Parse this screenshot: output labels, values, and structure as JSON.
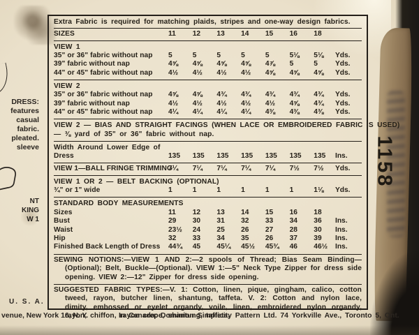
{
  "pattern_number": "1158",
  "table": {
    "note": "Extra Fabric is required for matching plaids, stripes and one-way design fabrics.",
    "sizes_header": {
      "label": "SIZES",
      "values": [
        "11",
        "12",
        "13",
        "14",
        "15",
        "16",
        "18"
      ],
      "unit": ""
    },
    "view1": {
      "title": "VIEW 1",
      "rows": [
        {
          "label": "35\" or 36\" fabric without nap",
          "values": [
            "5",
            "5",
            "5",
            "5",
            "5",
            "5⅛",
            "5⅛"
          ],
          "unit": "Yds."
        },
        {
          "label": "39\" fabric without nap",
          "values": [
            "4⅝",
            "4⅝",
            "4⅝",
            "4⅝",
            "4⅞",
            "5",
            "5"
          ],
          "unit": "Yds."
        },
        {
          "label": "44\" or 45\" fabric without nap",
          "values": [
            "4½",
            "4½",
            "4½",
            "4½",
            "4⅝",
            "4⅝",
            "4⅝"
          ],
          "unit": "Yds."
        }
      ]
    },
    "view2": {
      "title": "VIEW 2",
      "rows": [
        {
          "label": "35\" or 36\" fabric without nap",
          "values": [
            "4⅝",
            "4⅝",
            "4¾",
            "4¾",
            "4¾",
            "4¾",
            "4¾"
          ],
          "unit": "Yds."
        },
        {
          "label": "39\" fabric without nap",
          "values": [
            "4½",
            "4½",
            "4½",
            "4½",
            "4½",
            "4⅝",
            "4¾"
          ],
          "unit": "Yds."
        },
        {
          "label": "44\" or 45\" fabric without nap",
          "values": [
            "4¼",
            "4¼",
            "4¼",
            "4¼",
            "4⅜",
            "4⅜",
            "4⅜"
          ],
          "unit": "Yds."
        }
      ]
    },
    "facings_note_line1": "VIEW 2 — BIAS AND STRAIGHT FACINGS (WHEN LACE OR EMBROIDERED FABRIC IS USED)",
    "facings_note_line2": "— ⅜ yard of 35\" or 36\" fabric without nap.",
    "width_row": {
      "label_line1": "Width Around Lower Edge of",
      "label_line2": "Dress",
      "values": [
        "135",
        "135",
        "135",
        "135",
        "135",
        "135",
        "135"
      ],
      "unit": "Ins."
    },
    "fringe_row": {
      "label": "VIEW 1—BALL FRINGE TRIMMING",
      "values": [
        "7¼",
        "7¼",
        "7¼",
        "7¼",
        "7¼",
        "7½",
        "7½"
      ],
      "unit": "Yds."
    },
    "belt_backing": {
      "heading": "VIEW 1 OR 2 — BELT BACKING (OPTIONAL)",
      "row": {
        "label": "¾\" or 1\" wide",
        "values": [
          "1",
          "1",
          "1",
          "1",
          "1",
          "1",
          "1⅛"
        ],
        "unit": "Yds."
      }
    },
    "body_measurements": {
      "heading": "STANDARD BODY MEASUREMENTS",
      "rows": [
        {
          "label": "Sizes",
          "values": [
            "11",
            "12",
            "13",
            "14",
            "15",
            "16",
            "18"
          ],
          "unit": ""
        },
        {
          "label": "Bust",
          "values": [
            "29",
            "30",
            "31",
            "32",
            "33",
            "34",
            "36"
          ],
          "unit": "Ins."
        },
        {
          "label": "Waist",
          "values": [
            "23½",
            "24",
            "25",
            "26",
            "27",
            "28",
            "30"
          ],
          "unit": "Ins."
        },
        {
          "label": "Hip",
          "values": [
            "32",
            "33",
            "34",
            "35",
            "26",
            "37",
            "39"
          ],
          "unit": "Ins."
        },
        {
          "label": "Finished Back Length of Dress",
          "values": [
            "44¾",
            "45",
            "45¼",
            "45½",
            "45¾",
            "46",
            "46½"
          ],
          "unit": "Ins."
        }
      ]
    },
    "sewing_notions": "SEWING NOTIONS:—VIEW 1 AND 2:—2 spools of Thread; Bias Seam Binding—(Optional); Belt, Buckle—(Optional). VIEW 1:—5\" Neck Type Zipper for dress side opening. VIEW 2:—12\" Zipper for dress side opening.",
    "suggested_fabrics": "SUGGESTED FABRIC TYPES:—V. 1: Cotton, linen, pique, gingham, calico, cotton tweed, rayon, butcher linen, shantung, taffeta. V. 2: Cotton and nylon lace, dimity, embossed or eyelet organdy, voile, linen, embroidered nylon organdy, rayon, chiffon, rayon crepe, shantung, taffeta."
  },
  "left_fragments": {
    "top_block": "DRESS:\nfeatures\ncasual\nfabric.\npleated.\nsleeve",
    "bottom_block": "NT\nKING\nW 1"
  },
  "footer": {
    "usa": "U. S. A.",
    "left": "venue, New York 16, N. Y.",
    "canada": "In Canada: Dominion Simplicity Pattern Ltd. 74 Yorkville Ave., Toronto 5, Ont."
  },
  "colors": {
    "paper": "#efe7d3",
    "ink": "#241f19",
    "backdrop": "#1b1815",
    "torn_edge": "#9a8260"
  }
}
